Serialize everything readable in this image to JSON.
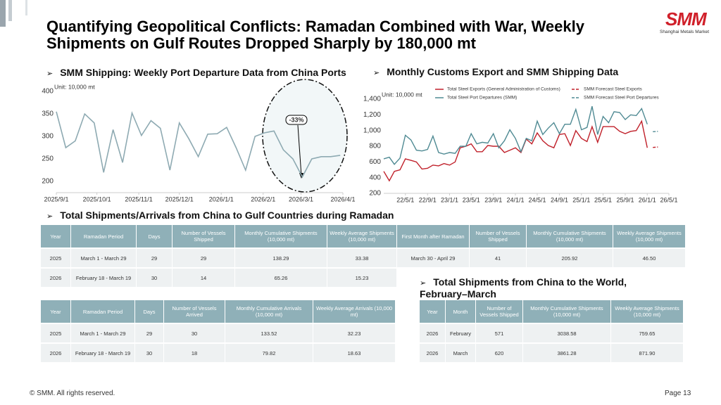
{
  "header": {
    "title": "Quantifying Geopolitical Conflicts: Ramadan Combined with War, Weekly Shipments on Gulf Routes Dropped Sharply by 180,000 mt",
    "logo": "SMM",
    "logo_sub": "Shanghai Metals Market"
  },
  "chart_data": [
    {
      "type": "line",
      "title": "SMM Shipping: Weekly Port Departure Data from China Ports",
      "unit": "Unit: 10,000 mt",
      "x": [
        "2025/9/1",
        "2025/9/8",
        "2025/9/15",
        "2025/9/22",
        "2025/9/29",
        "2025/10/6",
        "2025/10/13",
        "2025/10/20",
        "2025/10/27",
        "2025/11/3",
        "2025/11/10",
        "2025/11/17",
        "2025/11/24",
        "2025/12/1",
        "2025/12/8",
        "2025/12/15",
        "2025/12/22",
        "2025/12/29",
        "2026/1/5",
        "2026/1/12",
        "2026/1/19",
        "2026/1/26",
        "2026/2/2",
        "2026/2/9",
        "2026/2/16",
        "2026/2/23",
        "2026/3/2",
        "2026/3/9",
        "2026/3/16",
        "2026/3/23",
        "2026/3/30"
      ],
      "series": [
        {
          "color": "#8eaab2",
          "values": [
            355,
            275,
            290,
            350,
            330,
            220,
            315,
            242,
            352,
            302,
            335,
            318,
            225,
            330,
            295,
            255,
            305,
            306,
            320,
            275,
            225,
            300,
            308,
            312,
            270,
            250,
            210,
            250,
            255,
            255,
            258
          ]
        }
      ],
      "xlim": [
        "2025/9/1",
        "2026/4/1"
      ],
      "xticks": [
        "2025/9/1",
        "2025/10/1",
        "2025/11/1",
        "2025/12/1",
        "2026/1/1",
        "2026/2/1",
        "2026/3/1",
        "2026/4/1"
      ],
      "ylim": [
        175,
        400
      ],
      "yticks": [
        200,
        250,
        300,
        350,
        400
      ],
      "grid": false,
      "annotation": "-33%"
    },
    {
      "type": "line",
      "title": "Monthly Customs Export and SMM Shipping Data",
      "unit": "Unit: 10,000 mt",
      "x": [
        "22/1/1",
        "22/2/1",
        "22/3/1",
        "22/4/1",
        "22/5/1",
        "22/6/1",
        "22/7/1",
        "22/8/1",
        "22/9/1",
        "22/10/1",
        "22/11/1",
        "22/12/1",
        "23/1/1",
        "23/2/1",
        "23/3/1",
        "23/4/1",
        "23/5/1",
        "23/6/1",
        "23/7/1",
        "23/8/1",
        "23/9/1",
        "23/10/1",
        "23/11/1",
        "23/12/1",
        "24/1/1",
        "24/2/1",
        "24/3/1",
        "24/4/1",
        "24/5/1",
        "24/6/1",
        "24/7/1",
        "24/8/1",
        "24/9/1",
        "24/10/1",
        "24/11/1",
        "24/12/1",
        "25/1/1",
        "25/2/1",
        "25/3/1",
        "25/4/1",
        "25/5/1",
        "25/6/1",
        "25/7/1",
        "25/8/1",
        "25/9/1",
        "25/10/1",
        "25/11/1",
        "25/12/1",
        "26/1/1",
        "26/2/1",
        "26/3/1"
      ],
      "series": [
        {
          "name": "Total Steel Exports (General Administration of Customs)",
          "color": "#c0202a",
          "dashed": false,
          "values": [
            480,
            360,
            480,
            500,
            640,
            620,
            600,
            510,
            520,
            560,
            550,
            580,
            560,
            600,
            780,
            800,
            830,
            730,
            730,
            810,
            800,
            800,
            720,
            750,
            780,
            720,
            890,
            830,
            970,
            870,
            810,
            780,
            950,
            960,
            810,
            1000,
            900,
            860,
            1050,
            850,
            1050,
            1050,
            1050,
            990,
            960,
            990,
            1000,
            1120,
            780,
            null,
            null
          ]
        },
        {
          "name": "SMM Forecast Steel Exports",
          "color": "#c0202a",
          "dashed": true,
          "values": [
            null,
            null,
            null,
            null,
            null,
            null,
            null,
            null,
            null,
            null,
            null,
            null,
            null,
            null,
            null,
            null,
            null,
            null,
            null,
            null,
            null,
            null,
            null,
            null,
            null,
            null,
            null,
            null,
            null,
            null,
            null,
            null,
            null,
            null,
            null,
            null,
            null,
            null,
            null,
            null,
            null,
            null,
            null,
            null,
            null,
            null,
            null,
            null,
            null,
            785,
            790
          ]
        },
        {
          "name": "Total Steel Port Departures (SMM)",
          "color": "#4f8a93",
          "dashed": false,
          "values": [
            640,
            660,
            570,
            650,
            940,
            880,
            750,
            740,
            760,
            930,
            720,
            700,
            720,
            710,
            800,
            800,
            960,
            830,
            850,
            840,
            960,
            780,
            870,
            1010,
            900,
            730,
            900,
            870,
            1120,
            950,
            1030,
            1100,
            960,
            1080,
            1080,
            1270,
            1010,
            1040,
            1310,
            950,
            1180,
            1100,
            1240,
            1230,
            1140,
            1200,
            1190,
            1280,
            1080,
            null,
            null
          ]
        },
        {
          "name": "SMM Forecast Steel Port Departures",
          "color": "#4f8a93",
          "dashed": true,
          "values": [
            null,
            null,
            null,
            null,
            null,
            null,
            null,
            null,
            null,
            null,
            null,
            null,
            null,
            null,
            null,
            null,
            null,
            null,
            null,
            null,
            null,
            null,
            null,
            null,
            null,
            null,
            null,
            null,
            null,
            null,
            null,
            null,
            null,
            null,
            null,
            null,
            null,
            null,
            null,
            null,
            null,
            null,
            null,
            null,
            null,
            null,
            null,
            null,
            null,
            985,
            990
          ]
        }
      ],
      "xlim": [
        "22/1/1",
        "26/5/1"
      ],
      "xticks": [
        "22/5/1",
        "22/9/1",
        "23/1/1",
        "23/5/1",
        "23/9/1",
        "24/1/1",
        "24/5/1",
        "24/9/1",
        "25/1/1",
        "25/5/1",
        "25/9/1",
        "26/1/1",
        "26/5/1"
      ],
      "ylim": [
        200,
        1400
      ],
      "yticks": [
        200,
        400,
        600,
        800,
        {
          "value": 1000,
          "label": "1,000"
        },
        {
          "value": 1200,
          "label": "1,200"
        },
        {
          "value": 1400,
          "label": "1,400"
        }
      ],
      "grid": false
    }
  ],
  "section": {
    "title": "Total Shipments/Arrivals from China to Gulf Countries during Ramadan"
  },
  "tables": [
    {
      "headers": [
        "Year",
        "Ramadan Period",
        "Days",
        "Number of Vessels Shipped",
        "Monthly Cumulative Shipments (10,000 mt)",
        "Weekly Average Shipments (10,000 mt)",
        "First Month after Ramadan",
        "Number of Vessels Shipped",
        "Monthly Cumulative Shipments (10,000 mt)",
        "Weekly Average Shipments (10,000 mt)"
      ],
      "rows": [
        [
          "2025",
          "March 1 - March 29",
          "29",
          "29",
          "138.29",
          "33.38",
          "March 30 - April 29",
          "41",
          "205.92",
          "46.50"
        ],
        [
          "2026",
          "February 18 - March 19",
          "30",
          "14",
          "65.26",
          "15.23"
        ]
      ]
    },
    {
      "headers": [
        "Year",
        "Ramadan Period",
        "Days",
        "Number of Vessels Arrived",
        "Monthly Cumulative Arrivals (10,000 mt)",
        "Weekly Average Arrivals (10,000 mt)"
      ],
      "rows": [
        [
          "2025",
          "March 1 - March 29",
          "29",
          "30",
          "133.52",
          "32.23"
        ],
        [
          "2026",
          "February 18 - March 19",
          "30",
          "18",
          "79.82",
          "18.63"
        ]
      ]
    },
    {
      "title": "Total Shipments from China to the World, February–March",
      "headers": [
        "Year",
        "Month",
        "Number of Vessels Shipped",
        "Monthly Cumulative Shipments (10,000 mt)",
        "Weekly Average Shipments (10,000 mt)"
      ],
      "rows": [
        [
          "2026",
          "February",
          "571",
          "3038.58",
          "759.65"
        ],
        [
          "2026",
          "March",
          "620",
          "3861.28",
          "871.90"
        ]
      ]
    }
  ],
  "footer": {
    "copyright": "© SMM. All rights reserved.",
    "page": "Page 13"
  }
}
